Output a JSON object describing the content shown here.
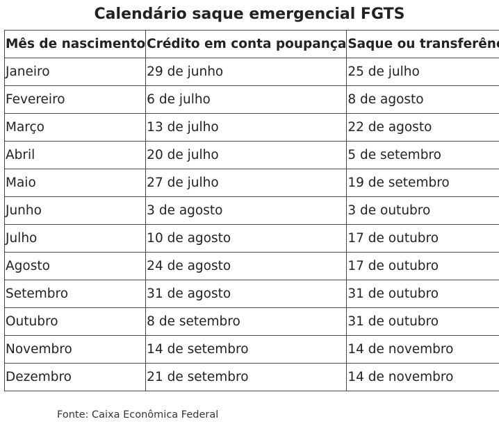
{
  "title": "Calendário saque emergencial FGTS",
  "table": {
    "headers": [
      "Mês de nascimento",
      "Crédito em conta poupança",
      "Saque ou transferência"
    ],
    "rows": [
      [
        "Janeiro",
        "29 de junho",
        "25 de julho"
      ],
      [
        "Fevereiro",
        "6 de julho",
        "8 de agosto"
      ],
      [
        "Março",
        "13 de julho",
        "22 de agosto"
      ],
      [
        "Abril",
        "20 de julho",
        "5 de setembro"
      ],
      [
        "Maio",
        "27 de julho",
        "19 de setembro"
      ],
      [
        "Junho",
        "3 de agosto",
        "3 de outubro"
      ],
      [
        "Julho",
        "10 de agosto",
        "17 de outubro"
      ],
      [
        "Agosto",
        "24 de agosto",
        "17 de outubro"
      ],
      [
        "Setembro",
        "31 de agosto",
        "31 de outubro"
      ],
      [
        "Outubro",
        "8 de setembro",
        "31 de outubro"
      ],
      [
        "Novembro",
        "14 de setembro",
        "14 de novembro"
      ],
      [
        "Dezembro",
        "21 de setembro",
        "14 de novembro"
      ]
    ]
  },
  "source": "Fonte: Caixa Econômica Federal"
}
